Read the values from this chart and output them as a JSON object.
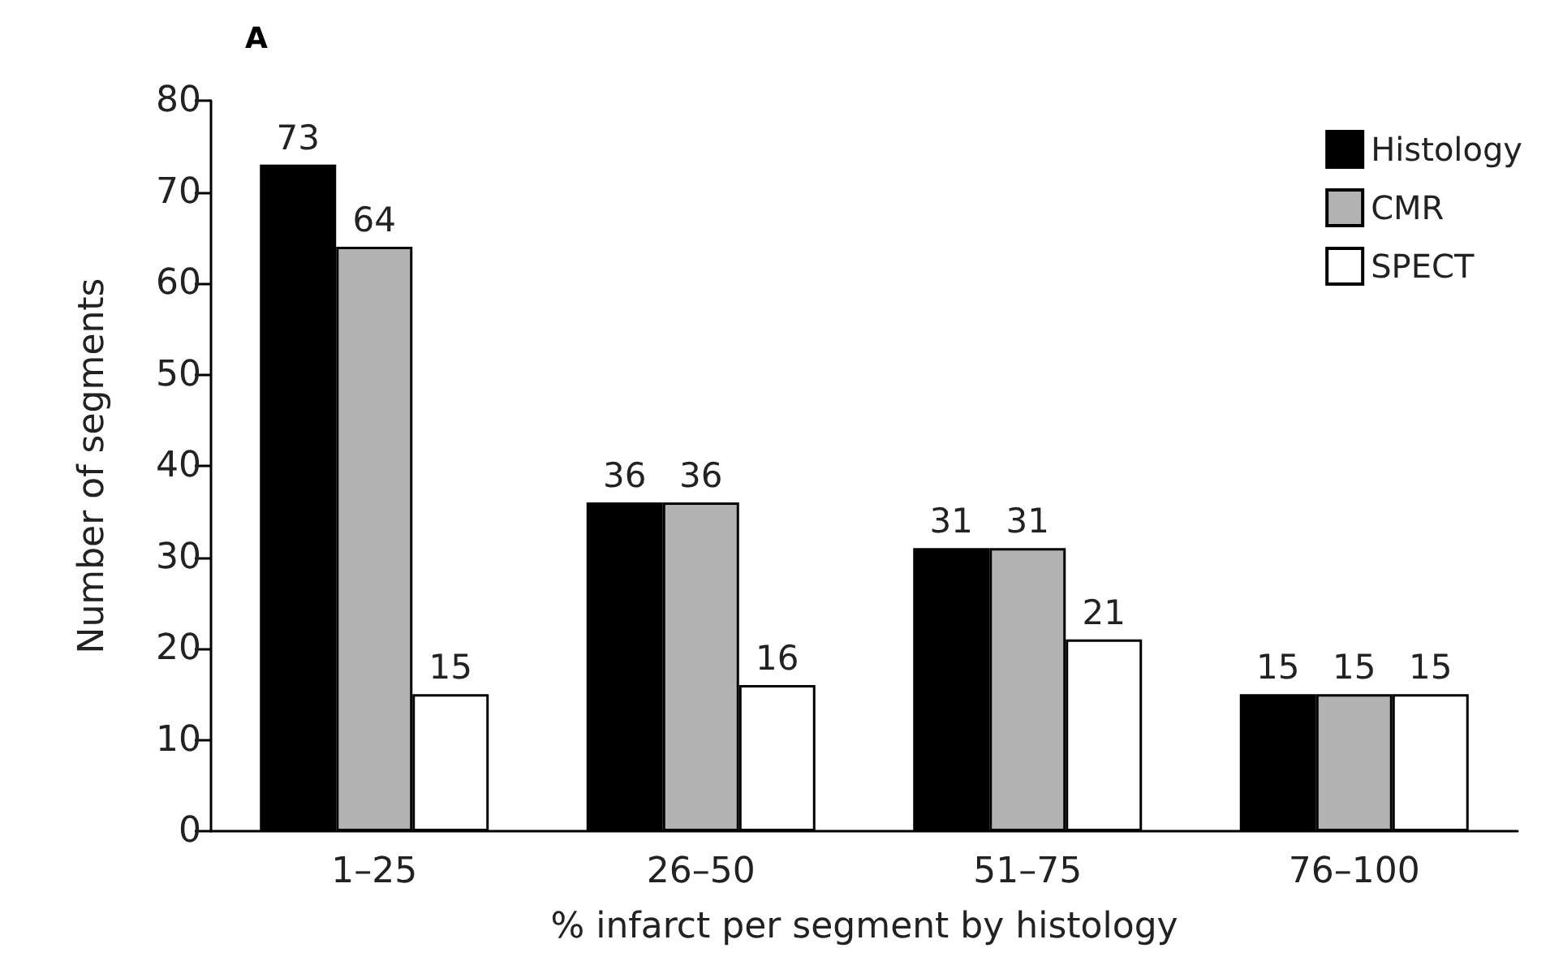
{
  "chart_data": {
    "type": "bar",
    "title": "A",
    "xlabel": "% infarct per segment by histology",
    "ylabel": "Number of segments",
    "categories": [
      "1–25",
      "26–50",
      "51–75",
      "76–100"
    ],
    "series": [
      {
        "name": "Histology",
        "color": "#000000",
        "values": [
          73,
          36,
          31,
          15
        ]
      },
      {
        "name": "CMR",
        "color": "#b3b3b3",
        "values": [
          64,
          36,
          31,
          15
        ]
      },
      {
        "name": "SPECT",
        "color": "#ffffff",
        "values": [
          15,
          16,
          21,
          15
        ]
      }
    ],
    "ylim": [
      0,
      80
    ],
    "yticks": [
      0,
      10,
      20,
      30,
      40,
      50,
      60,
      70,
      80
    ],
    "grid": false,
    "legend": "top right",
    "data_labels": true
  }
}
